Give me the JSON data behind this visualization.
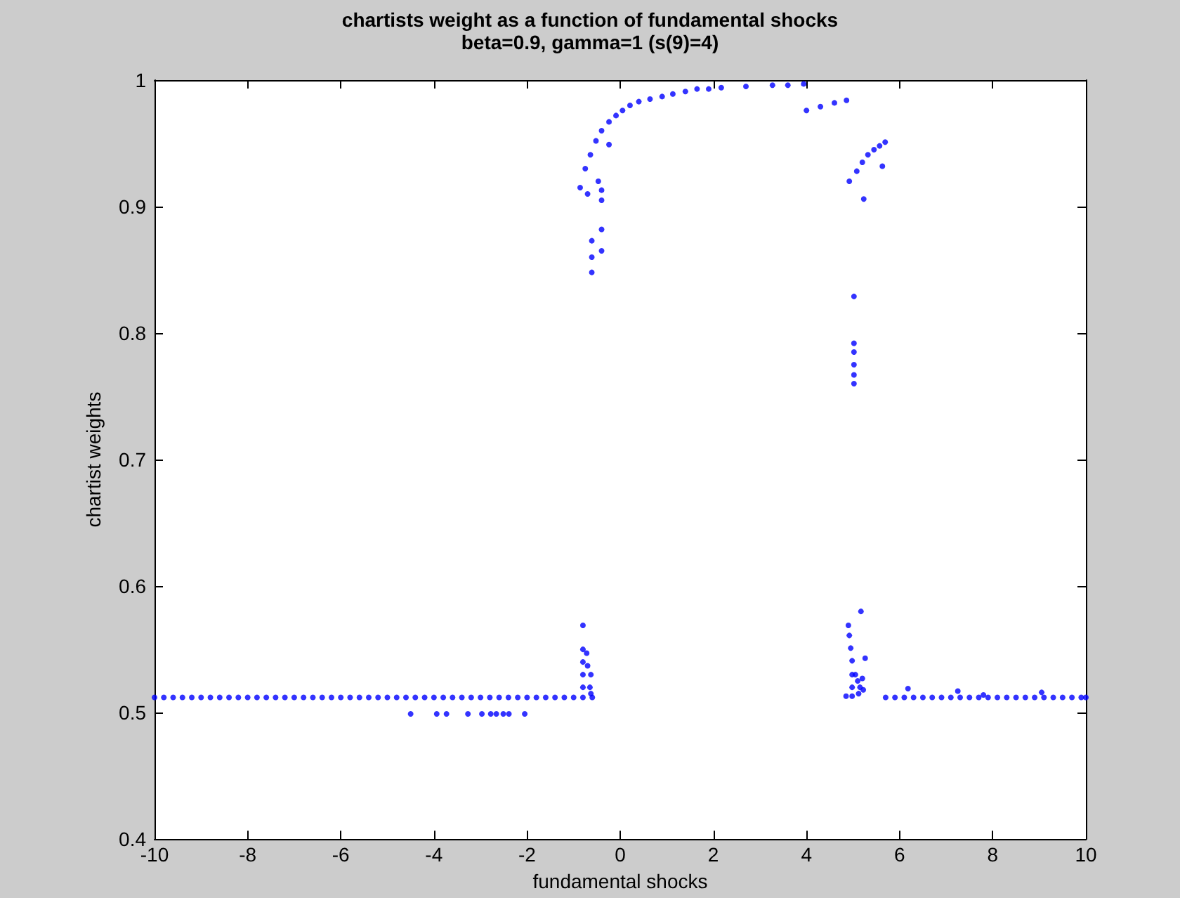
{
  "chart_data": {
    "type": "scatter",
    "title": "chartists weight as a function of fundamental shocks",
    "subtitle": "beta=0.9, gamma=1 (s(9)=4)",
    "xlabel": "fundamental shocks",
    "ylabel": "chartist weights",
    "xlim": [
      -10,
      10
    ],
    "ylim": [
      0.4,
      1
    ],
    "xticks": [
      -10,
      -8,
      -6,
      -4,
      -2,
      0,
      2,
      4,
      6,
      8,
      10
    ],
    "yticks": [
      0.4,
      0.5,
      0.6,
      0.7,
      0.8,
      0.9,
      1
    ],
    "grid": false,
    "marker": "circle",
    "series": [
      {
        "color": "#0000ff",
        "x": [
          -10,
          -9.8,
          -9.6,
          -9.4,
          -9.2,
          -9,
          -8.8,
          -8.6,
          -8.4,
          -8.2,
          -8,
          -7.8,
          -7.6,
          -7.4,
          -7.2,
          -7,
          -6.8,
          -6.6,
          -6.4,
          -6.2,
          -6,
          -5.8,
          -5.6,
          -5.4,
          -5.2,
          -5,
          -4.8,
          -4.6,
          -4.4,
          -4.2,
          -4,
          -3.8,
          -3.6,
          -3.4,
          -3.2,
          -3,
          -2.8,
          -2.6,
          -2.4,
          -2.2,
          -2,
          -1.8,
          -1.6,
          -1.4,
          -1.2,
          -1,
          -0.8,
          -0.6
        ],
        "values": [
          0.512,
          0.512,
          0.512,
          0.512,
          0.512,
          0.512,
          0.512,
          0.512,
          0.512,
          0.512,
          0.512,
          0.512,
          0.512,
          0.512,
          0.512,
          0.512,
          0.512,
          0.512,
          0.512,
          0.512,
          0.512,
          0.512,
          0.512,
          0.512,
          0.512,
          0.512,
          0.512,
          0.512,
          0.512,
          0.512,
          0.512,
          0.512,
          0.512,
          0.512,
          0.512,
          0.512,
          0.512,
          0.512,
          0.512,
          0.512,
          0.512,
          0.512,
          0.512,
          0.512,
          0.512,
          0.512,
          0.512,
          0.512
        ]
      },
      {
        "color": "#0000ff",
        "x": [
          -4.5,
          -3.94,
          -3.73,
          -3.27,
          -2.97,
          -2.78,
          -2.66,
          -2.51,
          -2.39,
          -2.05
        ],
        "values": [
          0.499,
          0.499,
          0.499,
          0.499,
          0.499,
          0.499,
          0.499,
          0.499,
          0.499,
          0.499
        ]
      },
      {
        "color": "#0000ff",
        "x": [
          -0.8,
          -0.8,
          -0.8,
          -0.8,
          -0.8,
          -0.72,
          -0.7,
          -0.65,
          -0.63,
          -0.63
        ],
        "values": [
          0.569,
          0.55,
          0.54,
          0.53,
          0.52,
          0.547,
          0.537,
          0.52,
          0.53,
          0.515
        ]
      },
      {
        "color": "#0000ff",
        "x": [
          -0.86,
          -0.75,
          -0.64,
          -0.52,
          -0.4,
          -0.24,
          -0.09,
          0.05,
          0.21,
          0.4,
          0.64,
          0.9,
          1.13,
          1.4,
          1.65,
          1.9,
          2.17,
          2.7,
          3.27,
          3.6,
          3.94
        ],
        "values": [
          0.915,
          0.93,
          0.941,
          0.952,
          0.96,
          0.967,
          0.972,
          0.976,
          0.98,
          0.983,
          0.985,
          0.987,
          0.989,
          0.991,
          0.993,
          0.993,
          0.994,
          0.995,
          0.996,
          0.996,
          0.997
        ]
      },
      {
        "color": "#0000ff",
        "x": [
          -0.7,
          -0.47,
          -0.24,
          -0.61,
          -0.61,
          -0.61,
          -0.4,
          -0.4,
          -0.4,
          -0.4
        ],
        "values": [
          0.91,
          0.92,
          0.949,
          0.873,
          0.86,
          0.848,
          0.882,
          0.865,
          0.913,
          0.905
        ]
      },
      {
        "color": "#0000ff",
        "x": [
          4,
          4.3,
          4.6,
          4.86
        ],
        "values": [
          0.976,
          0.979,
          0.982,
          0.984
        ]
      },
      {
        "color": "#0000ff",
        "x": [
          5.08,
          5.2,
          5.32,
          5.45,
          5.57,
          5.69,
          4.92,
          5.63,
          5.23
        ],
        "values": [
          0.928,
          0.935,
          0.941,
          0.945,
          0.948,
          0.951,
          0.92,
          0.932,
          0.906
        ]
      },
      {
        "color": "#0000ff",
        "x": [
          5.02,
          5.02,
          5.02,
          5.02,
          5.02,
          5.02
        ],
        "values": [
          0.829,
          0.792,
          0.785,
          0.775,
          0.767,
          0.76
        ]
      },
      {
        "color": "#0000ff",
        "x": [
          5.17,
          4.9,
          4.92,
          4.95,
          4.98,
          4.98,
          4.98,
          4.98,
          5.26,
          5.05,
          5.1,
          5.15,
          5.2,
          5.12,
          5.22,
          4.85
        ],
        "values": [
          0.58,
          0.569,
          0.561,
          0.551,
          0.541,
          0.53,
          0.52,
          0.513,
          0.543,
          0.53,
          0.525,
          0.52,
          0.527,
          0.515,
          0.518,
          0.513
        ]
      },
      {
        "color": "#0000ff",
        "x": [
          5.7,
          5.9,
          6.1,
          6.3,
          6.5,
          6.7,
          6.9,
          7.1,
          7.3,
          7.5,
          7.7,
          7.9,
          8.1,
          8.3,
          8.5,
          8.7,
          8.9,
          9.1,
          9.3,
          9.5,
          9.7,
          9.9,
          10
        ],
        "values": [
          0.512,
          0.512,
          0.512,
          0.512,
          0.512,
          0.512,
          0.512,
          0.512,
          0.512,
          0.512,
          0.512,
          0.512,
          0.512,
          0.512,
          0.512,
          0.512,
          0.512,
          0.512,
          0.512,
          0.512,
          0.512,
          0.512,
          0.512
        ]
      },
      {
        "color": "#0000ff",
        "x": [
          6.18,
          7.25,
          7.8,
          9.05
        ],
        "values": [
          0.519,
          0.517,
          0.514,
          0.516
        ]
      }
    ]
  }
}
